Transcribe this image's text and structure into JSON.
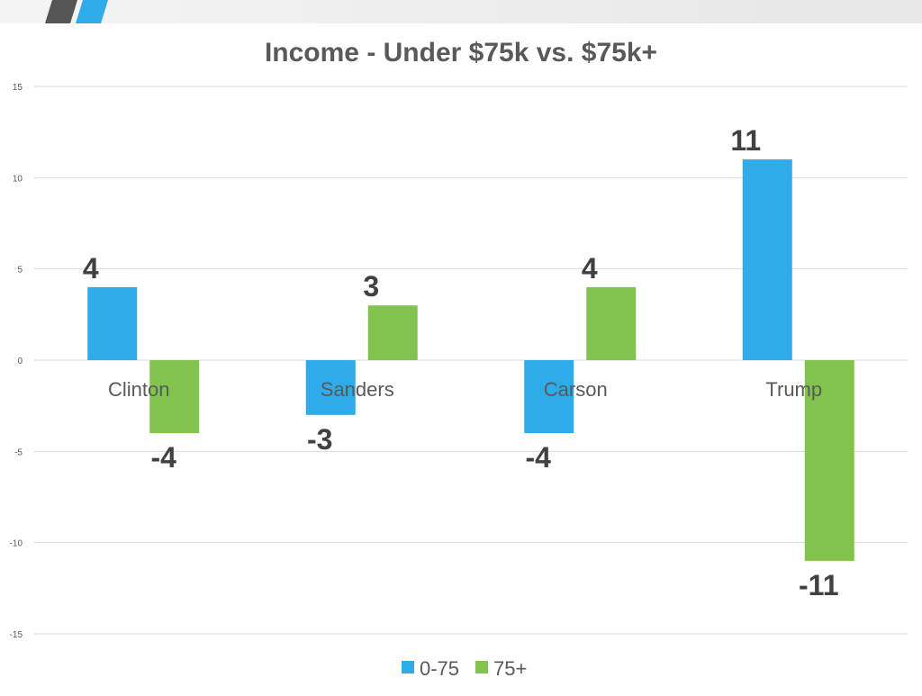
{
  "colors": {
    "series1": "#2fabe9",
    "series2": "#82c34f",
    "grid": "#d9d9d9",
    "text": "#595959",
    "label": "#404040",
    "header_dark": "#555555",
    "header_blue": "#2fabe9"
  },
  "chart_data": {
    "type": "bar",
    "title": "Income - Under $75k vs. $75k+",
    "categories": [
      "Clinton",
      "Sanders",
      "Carson",
      "Trump"
    ],
    "series": [
      {
        "name": "0-75",
        "values": [
          4,
          -3,
          -4,
          11
        ]
      },
      {
        "name": "75+",
        "values": [
          -4,
          3,
          4,
          -11
        ]
      }
    ],
    "ylim": [
      -15,
      15
    ],
    "yticks": [
      -15,
      -10,
      -5,
      0,
      5,
      10,
      15
    ],
    "grid": true,
    "legend": "bottom",
    "data_labels": true
  }
}
